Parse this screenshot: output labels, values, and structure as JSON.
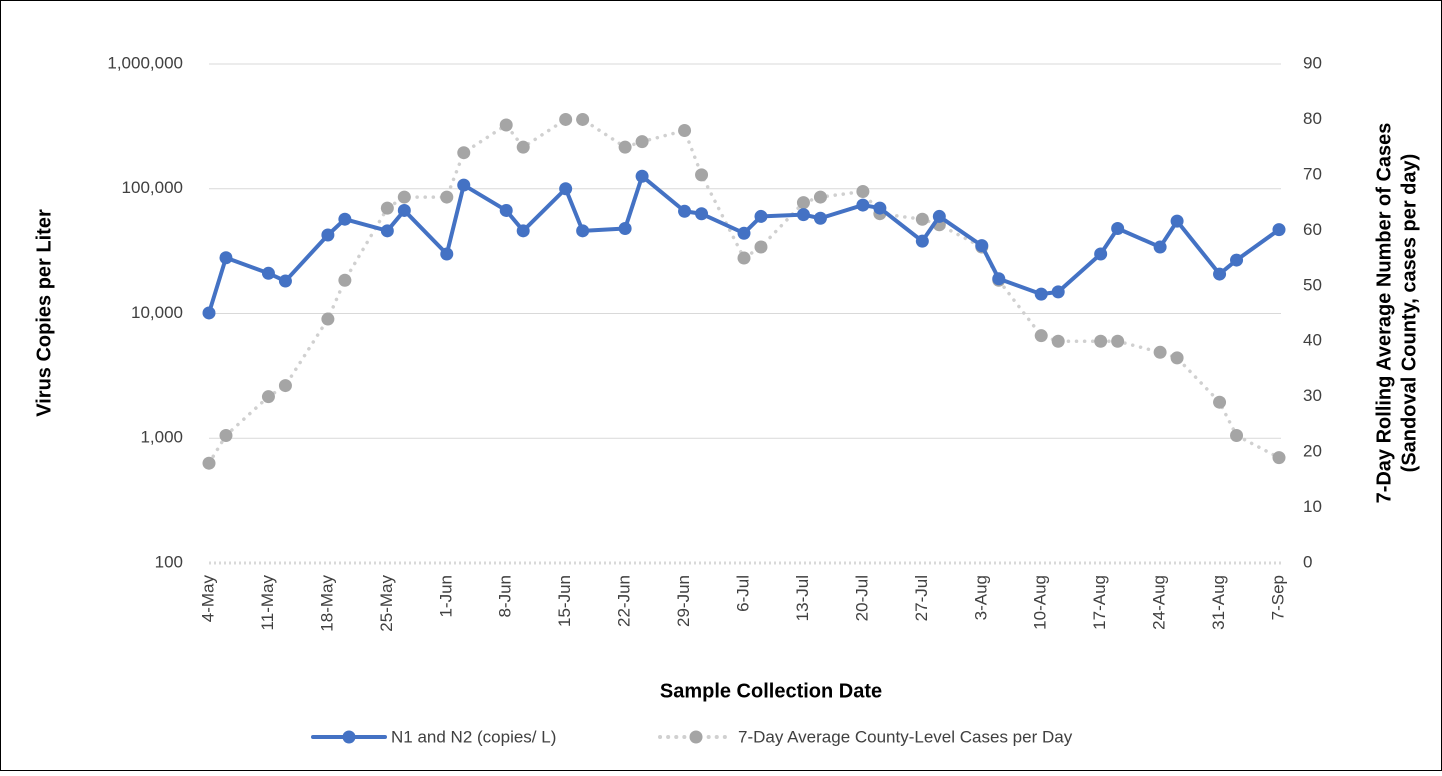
{
  "chart_data": {
    "type": "line",
    "xlabel": "Sample Collection Date",
    "ylabel": "Virus Copies per Liter",
    "y2label": [
      "7-Day Rolling Average Number of Cases",
      "(Sandoval County, cases per day)"
    ],
    "x": [
      "4-May",
      "6-May",
      "11-May",
      "13-May",
      "18-May",
      "20-May",
      "25-May",
      "27-May",
      "1-Jun",
      "3-Jun",
      "8-Jun",
      "10-Jun",
      "15-Jun",
      "17-Jun",
      "22-Jun",
      "24-Jun",
      "29-Jun",
      "1-Jul",
      "6-Jul",
      "8-Jul",
      "13-Jul",
      "15-Jul",
      "20-Jul",
      "22-Jul",
      "27-Jul",
      "29-Jul",
      "3-Aug",
      "5-Aug",
      "10-Aug",
      "12-Aug",
      "17-Aug",
      "19-Aug",
      "24-Aug",
      "26-Aug",
      "31-Aug",
      "2-Sep",
      "7-Sep"
    ],
    "xticks": [
      "4-May",
      "11-May",
      "18-May",
      "25-May",
      "1-Jun",
      "8-Jun",
      "15-Jun",
      "22-Jun",
      "29-Jun",
      "6-Jul",
      "13-Jul",
      "20-Jul",
      "27-Jul",
      "3-Aug",
      "10-Aug",
      "17-Aug",
      "24-Aug",
      "31-Aug",
      "7-Sep"
    ],
    "series": [
      {
        "name": "N1 and N2 (copies/ L)",
        "color": "#4472c4",
        "axis": "y",
        "values": [
          10100,
          28000,
          21000,
          18200,
          42600,
          57000,
          46000,
          67000,
          30000,
          107000,
          67000,
          46000,
          100000,
          46000,
          48000,
          126000,
          66000,
          63000,
          44000,
          60000,
          62000,
          58000,
          74000,
          70000,
          38000,
          60000,
          35000,
          19000,
          14300,
          14900,
          30000,
          48000,
          34100,
          55000,
          20700,
          26800,
          47000
        ]
      },
      {
        "name": "7-Day Average County-Level Cases per Day",
        "color": "#a5a5a5",
        "axis": "y2",
        "values": [
          18,
          23,
          30,
          32,
          44,
          51,
          64,
          66,
          66,
          74,
          79,
          75,
          80,
          80,
          75,
          76,
          78,
          70,
          55,
          57,
          65,
          66,
          67,
          63,
          62,
          61,
          57,
          51,
          41,
          40,
          40,
          40,
          38,
          37,
          29,
          23,
          19
        ]
      }
    ],
    "ylog": true,
    "ylim": [
      100,
      1000000
    ],
    "yticks": [
      100,
      {
        "value": 1000,
        "label": "1,000"
      },
      {
        "value": 10000,
        "label": "10,000"
      },
      {
        "value": 100000,
        "label": "100,000"
      },
      {
        "value": 1000000,
        "label": "1,000,000"
      }
    ],
    "y2lim": [
      0,
      90
    ],
    "y2ticks": [
      0,
      10,
      20,
      30,
      40,
      50,
      60,
      70,
      80,
      90
    ],
    "grid": true,
    "legend": "bottom"
  }
}
